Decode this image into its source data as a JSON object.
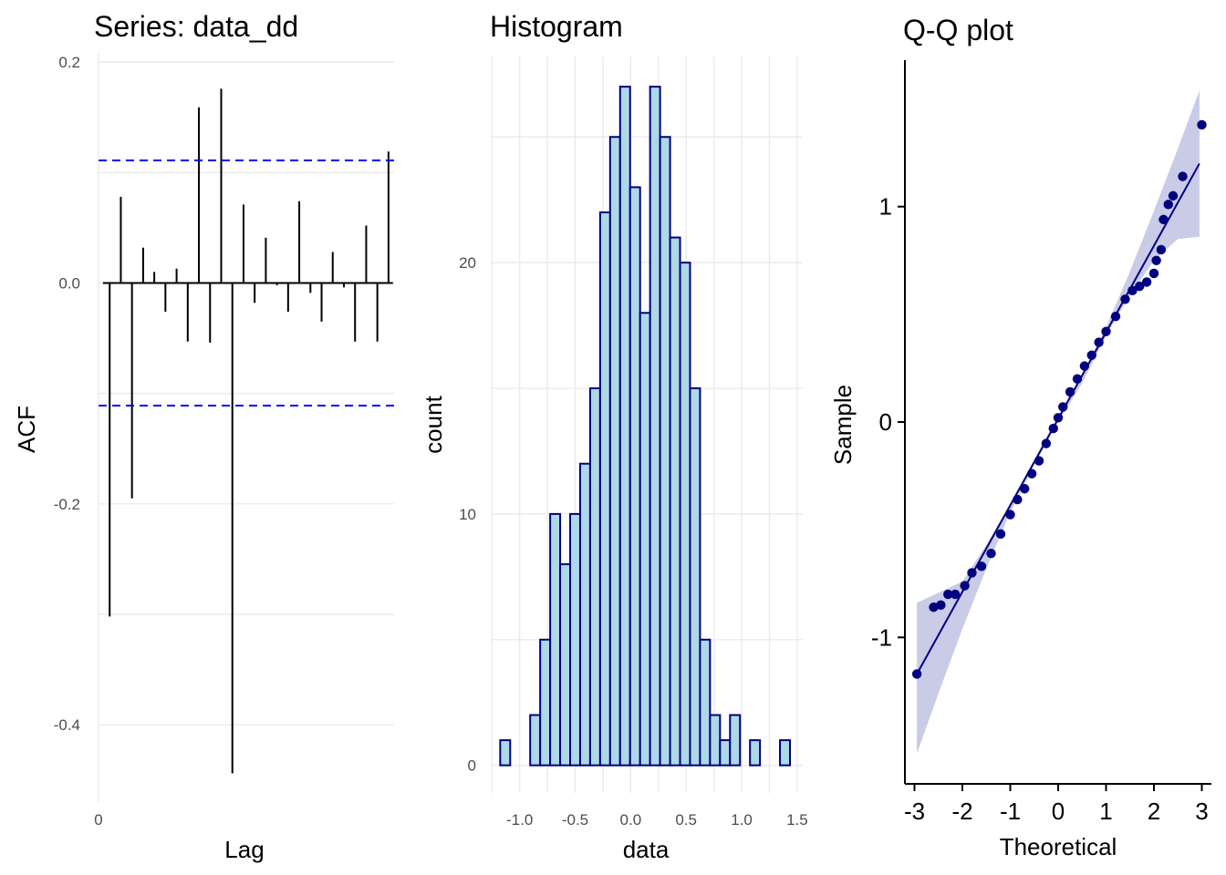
{
  "chart_data": [
    {
      "type": "bar",
      "subtype": "acf",
      "title": "Series: data_dd",
      "xlabel": "Lag",
      "ylabel": "ACF",
      "xticks": [
        0
      ],
      "yticks": [
        0.2,
        0.0,
        -0.2,
        -0.4
      ],
      "ytick_labels": [
        "0.2",
        "0.0",
        "-0.2",
        "-0.4"
      ],
      "xlim": [
        0,
        26.5
      ],
      "ylim": [
        -0.47,
        0.21
      ],
      "lags": [
        1,
        2,
        3,
        4,
        5,
        6,
        7,
        8,
        9,
        10,
        11,
        12,
        13,
        14,
        15,
        16,
        17,
        18,
        19,
        20,
        21,
        22,
        23,
        24,
        25,
        26
      ],
      "values": [
        -0.302,
        0.078,
        -0.195,
        0.032,
        0.01,
        -0.026,
        0.013,
        -0.053,
        0.159,
        -0.054,
        0.176,
        -0.444,
        0.071,
        -0.018,
        0.041,
        -0.002,
        -0.026,
        0.074,
        -0.009,
        -0.035,
        0.028,
        -0.004,
        -0.053,
        0.052,
        -0.053,
        0.119
      ],
      "confidence_bound": 0.111,
      "bar_color": "#000000",
      "ci_color": "#0000ff",
      "grid": true
    },
    {
      "type": "bar",
      "subtype": "histogram",
      "title": "Histogram",
      "xlabel": "data",
      "ylabel": "count",
      "xticks": [
        -1.0,
        -0.5,
        0.0,
        0.5,
        1.0,
        1.5
      ],
      "xtick_labels": [
        "-1.0",
        "-0.5",
        "0.0",
        "0.5",
        "1.0",
        "1.5"
      ],
      "yticks": [
        0,
        10,
        20
      ],
      "xlim": [
        -1.26,
        1.55
      ],
      "ylim": [
        -1.1,
        28.2
      ],
      "bin_width": 0.09,
      "bin_start": -1.175,
      "counts": [
        1,
        0,
        0,
        2,
        5,
        10,
        8,
        10,
        12,
        15,
        22,
        25,
        27,
        23,
        18,
        27,
        25,
        21,
        20,
        15,
        5,
        2,
        1,
        2,
        0,
        1,
        0,
        0,
        1
      ],
      "fill": "#add8e6",
      "edge": "#000080",
      "grid": true
    },
    {
      "type": "scatter",
      "subtype": "qq",
      "title": "Q-Q plot",
      "xlabel": "Theoretical",
      "ylabel": "Sample",
      "xticks": [
        -3,
        -2,
        -1,
        0,
        1,
        2,
        3
      ],
      "yticks": [
        -1,
        0,
        1
      ],
      "xlim": [
        -3.2,
        3.2
      ],
      "ylim": [
        -1.68,
        1.68
      ],
      "ref_line": {
        "x": [
          -2.95,
          2.95
        ],
        "y": [
          -1.17,
          1.2
        ]
      },
      "band_upper": [
        [
          -2.95,
          -0.84
        ],
        [
          -2.0,
          -0.74
        ],
        [
          -1.5,
          -0.57
        ],
        [
          -1.0,
          -0.38
        ],
        [
          -0.5,
          -0.19
        ],
        [
          0.0,
          0.01
        ],
        [
          0.5,
          0.22
        ],
        [
          1.0,
          0.44
        ],
        [
          1.5,
          0.7
        ],
        [
          2.0,
          0.98
        ],
        [
          2.5,
          1.27
        ],
        [
          2.95,
          1.54
        ]
      ],
      "band_lower": [
        [
          -2.95,
          -1.54
        ],
        [
          -2.5,
          -1.26
        ],
        [
          -2.0,
          -0.96
        ],
        [
          -1.5,
          -0.68
        ],
        [
          -1.0,
          -0.42
        ],
        [
          -0.5,
          -0.2
        ],
        [
          0.0,
          0.0
        ],
        [
          0.5,
          0.18
        ],
        [
          1.0,
          0.4
        ],
        [
          1.5,
          0.59
        ],
        [
          2.0,
          0.75
        ],
        [
          2.5,
          0.85
        ],
        [
          2.95,
          0.86
        ]
      ],
      "points": [
        [
          -2.95,
          -1.17
        ],
        [
          -2.6,
          -0.86
        ],
        [
          -2.45,
          -0.85
        ],
        [
          -2.3,
          -0.8
        ],
        [
          -2.15,
          -0.8
        ],
        [
          -1.95,
          -0.76
        ],
        [
          -1.8,
          -0.7
        ],
        [
          -1.6,
          -0.67
        ],
        [
          -1.4,
          -0.61
        ],
        [
          -1.2,
          -0.52
        ],
        [
          -1.0,
          -0.43
        ],
        [
          -0.85,
          -0.36
        ],
        [
          -0.7,
          -0.31
        ],
        [
          -0.55,
          -0.24
        ],
        [
          -0.4,
          -0.18
        ],
        [
          -0.25,
          -0.1
        ],
        [
          -0.1,
          -0.03
        ],
        [
          0.0,
          0.02
        ],
        [
          0.1,
          0.07
        ],
        [
          0.25,
          0.14
        ],
        [
          0.4,
          0.2
        ],
        [
          0.55,
          0.26
        ],
        [
          0.7,
          0.31
        ],
        [
          0.85,
          0.37
        ],
        [
          1.0,
          0.42
        ],
        [
          1.2,
          0.49
        ],
        [
          1.4,
          0.57
        ],
        [
          1.55,
          0.61
        ],
        [
          1.7,
          0.63
        ],
        [
          1.85,
          0.65
        ],
        [
          2.0,
          0.69
        ],
        [
          2.05,
          0.75
        ],
        [
          2.15,
          0.8
        ],
        [
          2.2,
          0.94
        ],
        [
          2.3,
          1.01
        ],
        [
          2.4,
          1.05
        ],
        [
          2.6,
          1.14
        ],
        [
          3.0,
          1.38
        ]
      ],
      "point_color": "#000080",
      "band_color": "#b7b9df",
      "grid": false
    }
  ]
}
